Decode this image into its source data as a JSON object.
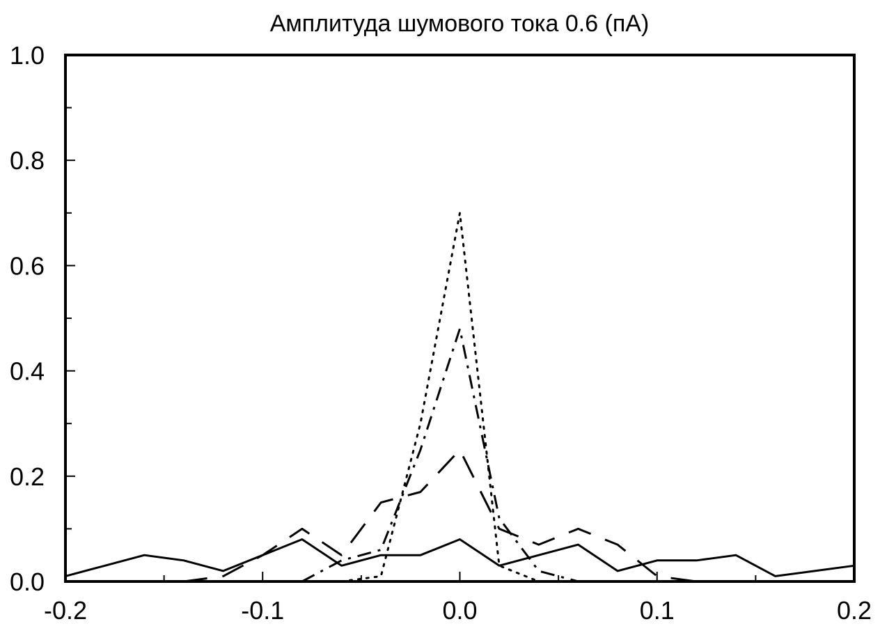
{
  "chart_data": {
    "type": "line",
    "title": "Амплитуда шумового тока 0.6 (пА)",
    "xlabel": "",
    "ylabel": "",
    "xlim": [
      -0.2,
      0.2
    ],
    "ylim": [
      0.0,
      1.0
    ],
    "x_ticks": [
      -0.2,
      -0.1,
      0.0,
      0.1,
      0.2
    ],
    "x_tick_labels": [
      "-0.2",
      "-0.1",
      "0.0",
      "0.1",
      "0.2"
    ],
    "y_ticks": [
      0.0,
      0.2,
      0.4,
      0.6,
      0.8,
      1.0
    ],
    "y_tick_labels": [
      "0.0",
      "0.2",
      "0.4",
      "0.6",
      "0.8",
      "1.0"
    ],
    "grid": false,
    "legend": "none",
    "series": [
      {
        "style": "solid",
        "color": "#000000",
        "x": [
          -0.2,
          -0.18,
          -0.16,
          -0.14,
          -0.12,
          -0.1,
          -0.08,
          -0.06,
          -0.04,
          -0.02,
          0.0,
          0.02,
          0.04,
          0.06,
          0.08,
          0.1,
          0.12,
          0.14,
          0.16,
          0.18,
          0.2
        ],
        "y": [
          0.01,
          0.03,
          0.05,
          0.04,
          0.02,
          0.05,
          0.08,
          0.03,
          0.05,
          0.05,
          0.08,
          0.03,
          0.05,
          0.07,
          0.02,
          0.04,
          0.04,
          0.05,
          0.01,
          0.02,
          0.03
        ]
      },
      {
        "style": "long-dash",
        "color": "#000000",
        "x": [
          -0.14,
          -0.12,
          -0.1,
          -0.08,
          -0.06,
          -0.04,
          -0.02,
          0.0,
          0.02,
          0.04,
          0.06,
          0.08,
          0.1,
          0.12
        ],
        "y": [
          0.0,
          0.01,
          0.05,
          0.1,
          0.05,
          0.15,
          0.17,
          0.25,
          0.1,
          0.07,
          0.1,
          0.07,
          0.01,
          0.0
        ]
      },
      {
        "style": "dash-dot",
        "color": "#000000",
        "x": [
          -0.08,
          -0.06,
          -0.04,
          -0.02,
          0.0,
          0.02,
          0.04,
          0.06
        ],
        "y": [
          0.0,
          0.04,
          0.06,
          0.25,
          0.48,
          0.12,
          0.02,
          0.0
        ]
      },
      {
        "style": "dotted",
        "color": "#000000",
        "x": [
          -0.06,
          -0.04,
          -0.02,
          0.0,
          0.02,
          0.04,
          0.06
        ],
        "y": [
          0.0,
          0.01,
          0.3,
          0.7,
          0.03,
          0.0,
          0.0
        ]
      }
    ]
  }
}
